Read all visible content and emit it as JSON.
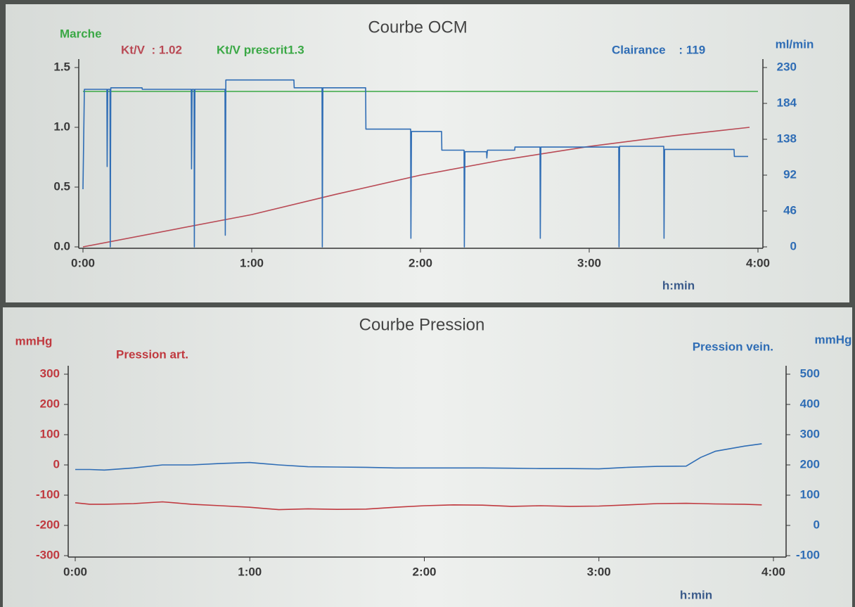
{
  "chart_data": [
    {
      "type": "line",
      "title": "Courbe OCM",
      "annotations": [
        "Marche",
        "Kt/V  : 1.02",
        "Kt/V prescrit1.3",
        "Clairance    : 119"
      ],
      "xlabel": "h:min",
      "y2label": "ml/min",
      "xlim": [
        0,
        240
      ],
      "xticks": [
        {
          "value": 0,
          "label": "0:00"
        },
        {
          "value": 60,
          "label": "1:00"
        },
        {
          "value": 120,
          "label": "2:00"
        },
        {
          "value": 180,
          "label": "3:00"
        },
        {
          "value": 240,
          "label": "4:00"
        }
      ],
      "ylim": [
        0,
        1.5
      ],
      "yticks": [
        {
          "value": 0,
          "label": "0.0"
        },
        0.5,
        {
          "value": 1,
          "label": "1.0"
        },
        1.5
      ],
      "y2lim": [
        0,
        230
      ],
      "y2ticks": [
        0,
        46,
        92,
        138,
        184,
        230
      ],
      "series": [
        {
          "color": "#b94a55",
          "x": [
            0,
            60,
            90,
            120,
            150,
            180,
            210,
            237
          ],
          "values": [
            0,
            0.27,
            0.44,
            0.6,
            0.73,
            0.84,
            0.93,
            1.0
          ]
        },
        {
          "color": "#3aa845",
          "x": [
            0,
            240
          ],
          "values": [
            1.3,
            1.3
          ]
        },
        {
          "color": "#2f6db5",
          "axis": "y2",
          "x": [
            0,
            0.5,
            8.5,
            8.6,
            8.8,
            9.6,
            9.7,
            9.9,
            21,
            21.1,
            38.5,
            38.6,
            38.8,
            39.5,
            39.6,
            39.8,
            50.5,
            50.6,
            50.8,
            75,
            75.1,
            85,
            85.1,
            85.3,
            100.5,
            100.6,
            116.5,
            116.6,
            116.8,
            127.5,
            127.6,
            135.5,
            135.6,
            135.8,
            143.5,
            143.6,
            143.8,
            153.5,
            153.6,
            162.5,
            162.6,
            162.8,
            190.5,
            190.6,
            190.8,
            206.5,
            206.6,
            206.8,
            231.5,
            231.6,
            236.5
          ],
          "values": [
            74,
            202,
            202,
            103,
            202,
            202,
            0,
            204,
            204,
            202,
            202,
            100,
            202,
            202,
            0,
            202,
            202,
            15,
            214,
            214,
            204,
            204,
            0,
            204,
            204,
            151,
            151,
            11,
            148,
            148,
            124,
            124,
            0,
            122,
            122,
            114,
            124,
            124,
            128,
            128,
            11,
            128,
            128,
            0,
            129,
            129,
            11,
            125,
            125,
            116,
            116
          ]
        }
      ]
    },
    {
      "type": "line",
      "title": "Courbe Pression",
      "xlabel": "h:min",
      "ylabel": "mmHg",
      "y2label": "mmHg",
      "xlim": [
        0,
        240
      ],
      "xticks": [
        {
          "value": 0,
          "label": "0:00"
        },
        {
          "value": 60,
          "label": "1:00"
        },
        {
          "value": 120,
          "label": "2:00"
        },
        {
          "value": 180,
          "label": "3:00"
        },
        {
          "value": 240,
          "label": "4:00"
        }
      ],
      "ylim": [
        -300,
        300
      ],
      "yticks": [
        -300,
        -200,
        -100,
        0,
        100,
        200,
        300
      ],
      "y2lim": [
        -100,
        500
      ],
      "y2ticks": [
        -100,
        0,
        100,
        200,
        300,
        400,
        500
      ],
      "x": [
        0,
        5,
        10,
        20,
        30,
        40,
        50,
        60,
        70,
        80,
        90,
        100,
        110,
        120,
        130,
        140,
        150,
        160,
        170,
        180,
        190,
        200,
        210,
        215,
        220,
        230,
        236
      ],
      "series": [
        {
          "name": "Pression art.",
          "color": "#c0393f",
          "values": [
            -125,
            -130,
            -130,
            -128,
            -122,
            -130,
            -135,
            -140,
            -148,
            -145,
            -147,
            -146,
            -140,
            -135,
            -132,
            -133,
            -137,
            -135,
            -137,
            -136,
            -132,
            -128,
            -127,
            -128,
            -129,
            -130,
            -132
          ]
        },
        {
          "name": "Pression vein.",
          "color": "#2f6db5",
          "axis": "y2",
          "values": [
            185,
            185,
            183,
            190,
            200,
            200,
            205,
            208,
            200,
            194,
            193,
            192,
            190,
            190,
            190,
            190,
            189,
            188,
            188,
            187,
            192,
            195,
            196,
            225,
            245,
            262,
            270
          ]
        }
      ]
    }
  ]
}
